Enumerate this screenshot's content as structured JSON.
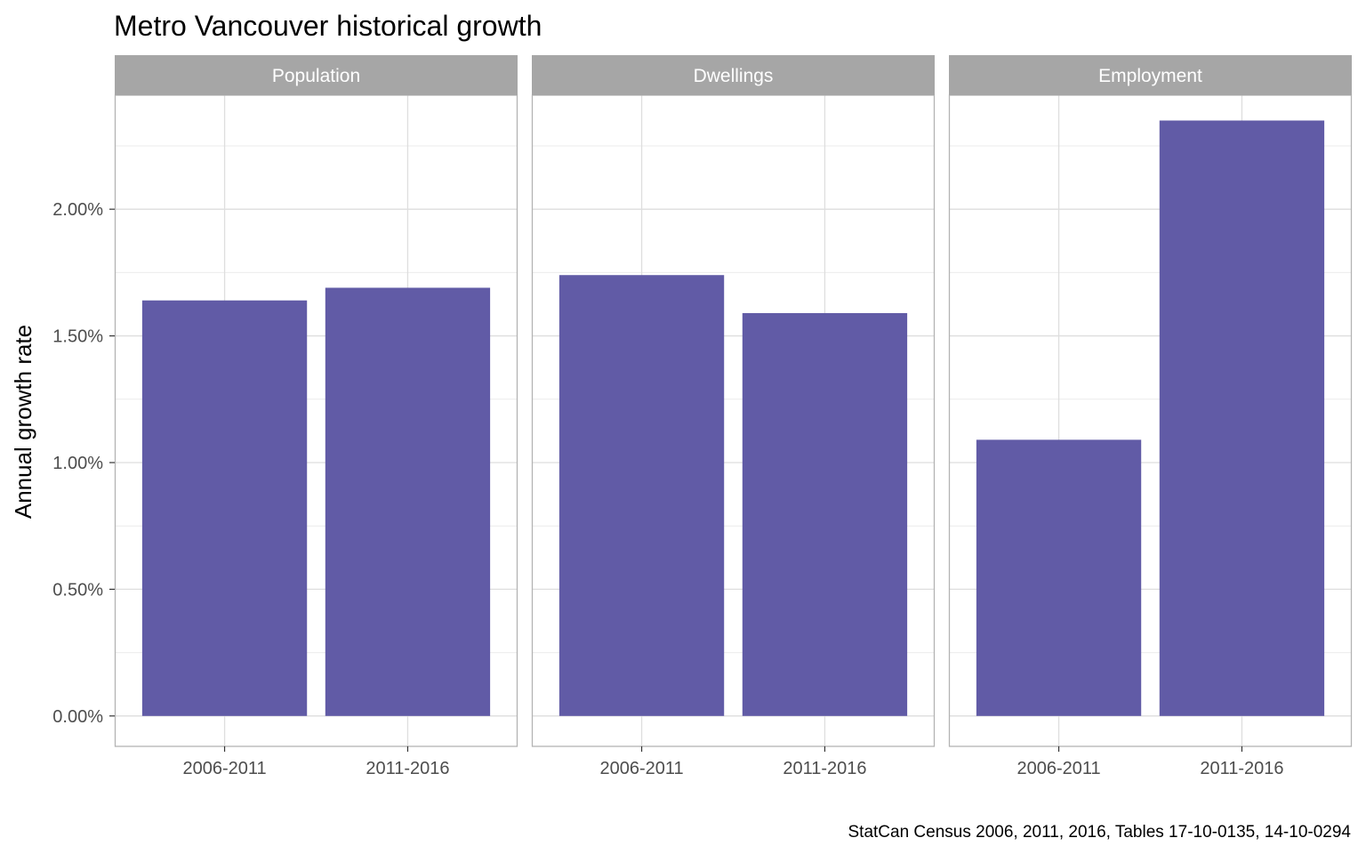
{
  "chart_data": {
    "type": "bar",
    "title": "Metro Vancouver historical growth",
    "ylabel": "Annual growth rate",
    "xlabel": "",
    "caption": "StatCan Census 2006, 2011, 2016, Tables 17-10-0135, 14-10-0294",
    "categories": [
      "2006-2011",
      "2011-2016"
    ],
    "y_ticks": [
      "0.00%",
      "0.50%",
      "1.00%",
      "1.50%",
      "2.00%"
    ],
    "y_tick_values": [
      0.0,
      0.5,
      1.0,
      1.5,
      2.0
    ],
    "ylim": [
      -0.12,
      2.45
    ],
    "grid": true,
    "facets": [
      {
        "name": "Population",
        "values": [
          1.64,
          1.69
        ]
      },
      {
        "name": "Dwellings",
        "values": [
          1.74,
          1.59
        ]
      },
      {
        "name": "Employment",
        "values": [
          1.09,
          2.35
        ]
      }
    ],
    "colors": {
      "bar": "#615BA6",
      "strip": "#A6A6A6",
      "grid": "#DEDEDE",
      "panel_border": "#B3B3B3"
    }
  }
}
